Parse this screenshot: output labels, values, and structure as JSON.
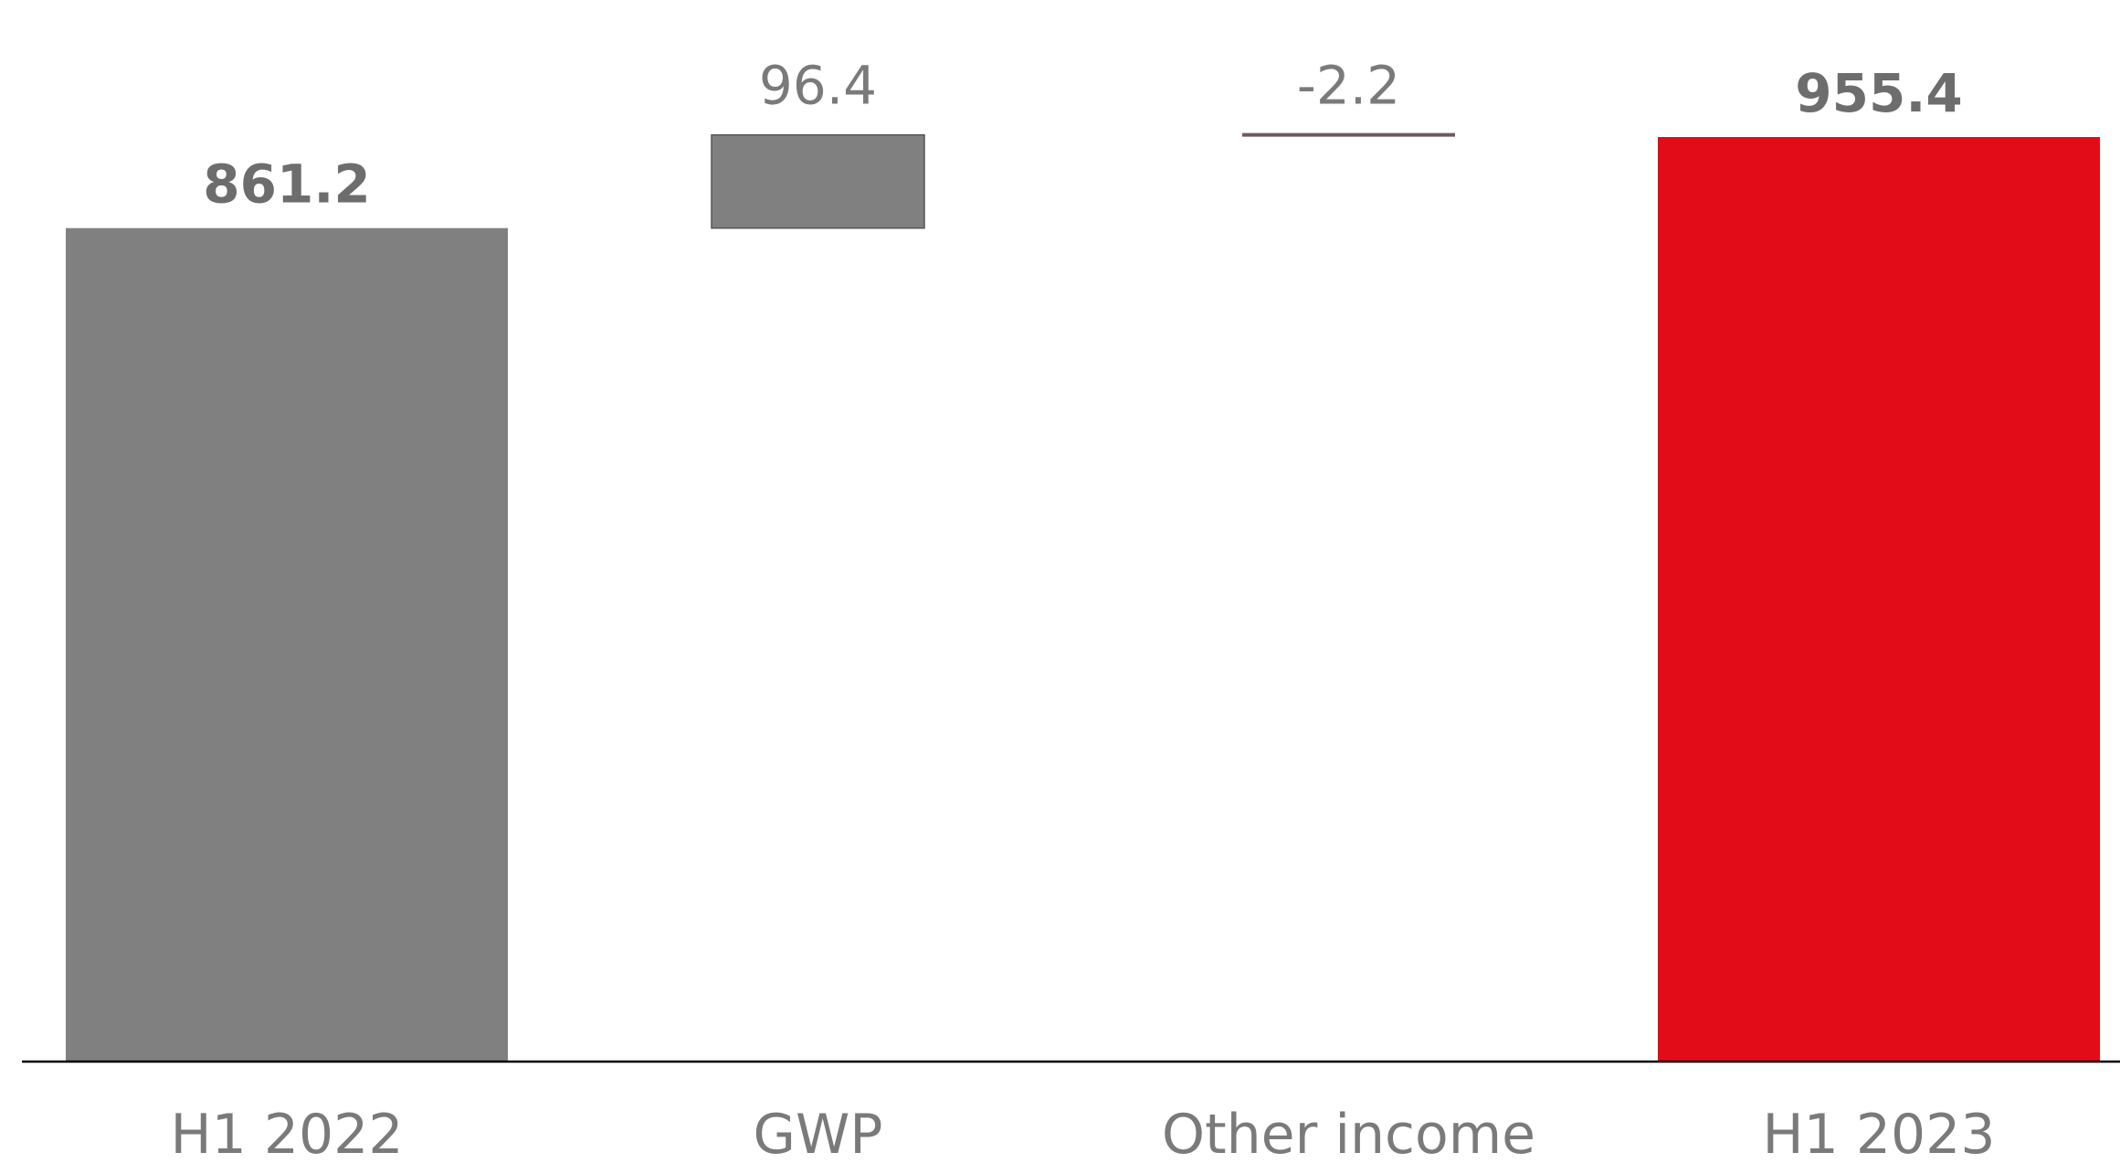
{
  "chart_data": {
    "type": "bar",
    "subtype": "waterfall",
    "categories": [
      "H1 2022",
      "GWP",
      "Other income",
      "H1 2023"
    ],
    "values": [
      861.2,
      96.4,
      -2.2,
      955.4
    ],
    "labels": [
      "861.2",
      "96.4",
      "-2.2",
      "955.4"
    ],
    "kinds": [
      "total",
      "delta",
      "delta",
      "total"
    ],
    "colors": {
      "total_start": "#808080",
      "delta": "#808080",
      "delta_border": "#555555",
      "small_delta_line": "#6b5a5e",
      "total_end": "#e20c18",
      "axis": "#000000"
    },
    "ylim": [
      0,
      955.4
    ],
    "grid": false,
    "legend": "none",
    "title": "",
    "xlabel": "",
    "ylabel": ""
  }
}
